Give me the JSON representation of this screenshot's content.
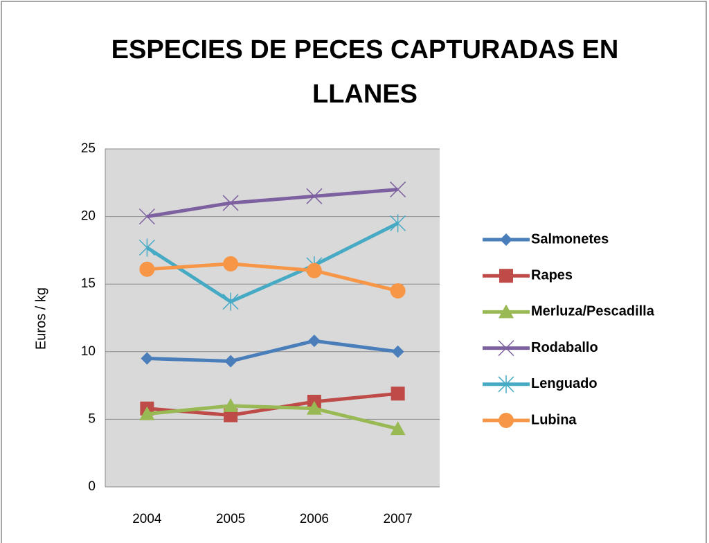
{
  "chart_data": {
    "type": "line",
    "title": "ESPECIES DE PECES CAPTURADAS EN LLANES",
    "y_label": "Euros / kg",
    "categories": [
      "2004",
      "2005",
      "2006",
      "2007"
    ],
    "series": [
      {
        "name": "Salmonetes",
        "color": "#4a7ebb",
        "marker": "diamond",
        "values": [
          9.5,
          9.3,
          10.8,
          10.0
        ]
      },
      {
        "name": "Rapes",
        "color": "#be4b48",
        "marker": "square",
        "values": [
          5.8,
          5.3,
          6.3,
          6.9
        ]
      },
      {
        "name": "Merluza/Pescadilla",
        "color": "#98b954",
        "marker": "triangle",
        "values": [
          5.4,
          6.0,
          5.8,
          4.3
        ]
      },
      {
        "name": "Rodaballo",
        "color": "#7d60a0",
        "marker": "x",
        "values": [
          20.0,
          21.0,
          21.5,
          22.0
        ]
      },
      {
        "name": "Lenguado",
        "color": "#46aac5",
        "marker": "star",
        "values": [
          17.7,
          13.7,
          16.4,
          19.5
        ]
      },
      {
        "name": "Lubina",
        "color": "#f79646",
        "marker": "circle",
        "values": [
          16.1,
          16.5,
          16.0,
          14.5
        ]
      }
    ],
    "ylim": [
      0,
      25
    ],
    "yticks": [
      0,
      5,
      10,
      15,
      20,
      25
    ],
    "grid": true,
    "legend": "right"
  }
}
